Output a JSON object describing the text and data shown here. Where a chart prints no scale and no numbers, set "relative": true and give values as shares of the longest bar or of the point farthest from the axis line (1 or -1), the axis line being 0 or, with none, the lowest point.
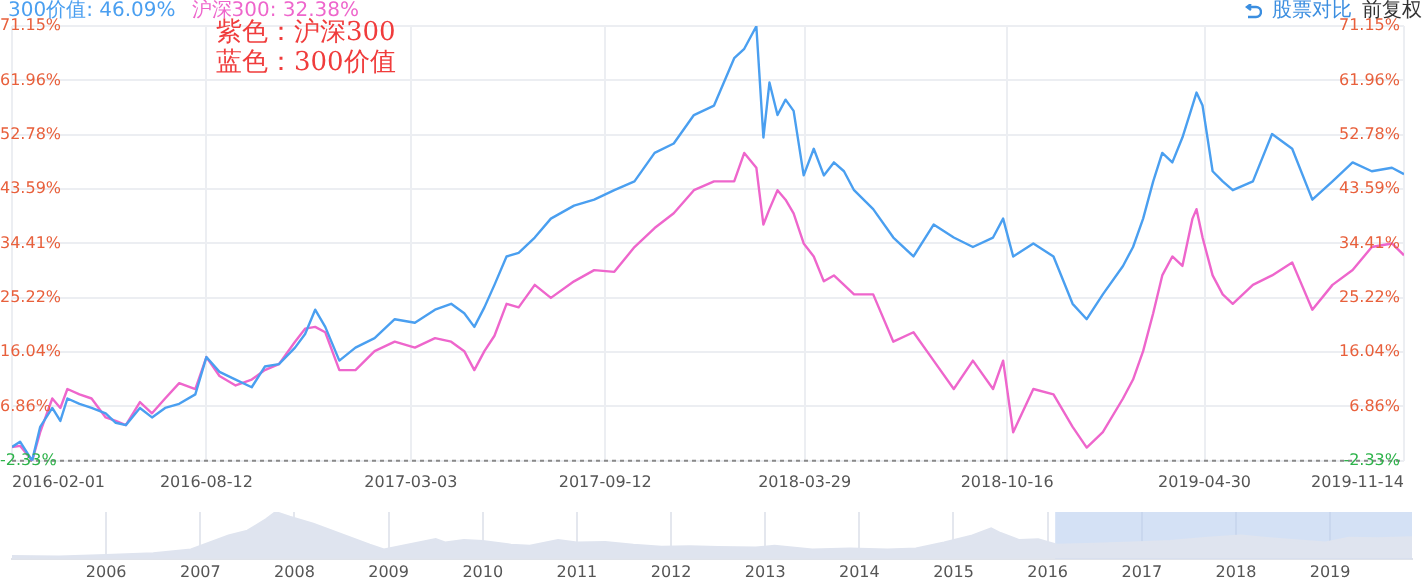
{
  "chart_data": [
    {
      "type": "line",
      "x": [
        "2016-02-01",
        "2016-02-09",
        "2016-02-21",
        "2016-02-29",
        "2016-03-12",
        "2016-03-20",
        "2016-03-27",
        "2016-04-08",
        "2016-04-20",
        "2016-05-04",
        "2016-05-14",
        "2016-05-24",
        "2016-06-07",
        "2016-06-19",
        "2016-07-02",
        "2016-07-16",
        "2016-08-01",
        "2016-08-12",
        "2016-08-25",
        "2016-09-10",
        "2016-09-26",
        "2016-10-09",
        "2016-10-23",
        "2016-11-08",
        "2016-11-18",
        "2016-11-28",
        "2016-12-08",
        "2016-12-22",
        "2017-01-07",
        "2017-01-26",
        "2017-02-15",
        "2017-03-07",
        "2017-03-27",
        "2017-04-12",
        "2017-04-25",
        "2017-05-05",
        "2017-05-15",
        "2017-05-25",
        "2017-06-06",
        "2017-06-18",
        "2017-07-04",
        "2017-07-20",
        "2017-08-12",
        "2017-09-01",
        "2017-09-21",
        "2017-10-11",
        "2017-10-31",
        "2017-11-19",
        "2017-12-09",
        "2017-12-29",
        "2018-01-18",
        "2018-01-28",
        "2018-02-09",
        "2018-02-16",
        "2018-02-22",
        "2018-03-02",
        "2018-03-10",
        "2018-03-18",
        "2018-03-28",
        "2018-04-07",
        "2018-04-17",
        "2018-04-27",
        "2018-05-07",
        "2018-05-17",
        "2018-06-05",
        "2018-06-25",
        "2018-07-15",
        "2018-08-04",
        "2018-08-24",
        "2018-09-12",
        "2018-10-02",
        "2018-10-12",
        "2018-10-22",
        "2018-11-11",
        "2018-12-01",
        "2018-12-20",
        "2019-01-03",
        "2019-01-19",
        "2019-02-08",
        "2019-02-18",
        "2019-02-28",
        "2019-03-10",
        "2019-03-19",
        "2019-03-29",
        "2019-04-08",
        "2019-04-18",
        "2019-04-22",
        "2019-04-28",
        "2019-05-08",
        "2019-05-18",
        "2019-05-28",
        "2019-06-17",
        "2019-07-06",
        "2019-07-26",
        "2019-08-15",
        "2019-09-04",
        "2019-09-24",
        "2019-10-13",
        "2019-11-02",
        "2019-11-14"
      ],
      "series": [
        {
          "name": "300价值: 46.09%",
          "color": "#4a9ff0",
          "values": [
            0,
            0.9,
            -2.3,
            3.4,
            6.6,
            4.4,
            8.2,
            7.3,
            6.6,
            5.7,
            4.1,
            3.7,
            6.6,
            5.0,
            6.6,
            7.3,
            8.9,
            15.2,
            12.7,
            11.4,
            10.1,
            13.6,
            14.0,
            16.8,
            19.1,
            23.2,
            20.3,
            14.6,
            16.8,
            18.4,
            21.6,
            21.0,
            23.2,
            24.2,
            22.6,
            20.3,
            23.6,
            27.4,
            32.2,
            32.8,
            35.4,
            38.6,
            40.8,
            41.8,
            43.4,
            44.9,
            49.7,
            51.3,
            56.1,
            57.7,
            65.7,
            67.3,
            71.1,
            52.3,
            61.6,
            56.1,
            58.7,
            56.8,
            45.9,
            50.4,
            45.9,
            48.1,
            46.6,
            43.4,
            40.2,
            35.4,
            32.2,
            37.6,
            35.4,
            33.8,
            35.4,
            38.6,
            32.2,
            34.4,
            32.2,
            24.2,
            21.6,
            25.8,
            30.6,
            33.8,
            38.6,
            44.9,
            49.7,
            48.1,
            52.3,
            57.7,
            59.9,
            57.7,
            46.6,
            44.9,
            43.4,
            44.9,
            52.9,
            50.4,
            41.8,
            44.9,
            48.1,
            46.6,
            47.2,
            46.1
          ]
        },
        {
          "name": "沪深300: 32.38%",
          "color": "#ee66cc",
          "values": [
            0,
            0.2,
            -2.3,
            2.5,
            8.2,
            6.6,
            9.8,
            8.9,
            8.2,
            5.0,
            4.4,
            3.7,
            7.6,
            5.7,
            8.2,
            10.8,
            9.8,
            15.2,
            12.0,
            10.4,
            11.4,
            13.0,
            14.0,
            17.8,
            20.0,
            20.3,
            19.4,
            13.0,
            13.0,
            16.2,
            17.8,
            16.8,
            18.4,
            17.8,
            16.2,
            13.0,
            16.2,
            18.8,
            24.2,
            23.6,
            27.4,
            25.2,
            28.0,
            29.9,
            29.6,
            33.8,
            37.0,
            39.5,
            43.4,
            44.9,
            44.9,
            49.7,
            47.2,
            37.6,
            40.2,
            43.4,
            41.8,
            39.5,
            34.4,
            32.2,
            28.0,
            29.0,
            27.4,
            25.8,
            25.8,
            17.8,
            19.4,
            14.6,
            9.8,
            14.6,
            9.8,
            14.6,
            2.5,
            9.8,
            8.9,
            3.4,
            -0.1,
            2.5,
            8.2,
            11.4,
            16.2,
            22.6,
            29.0,
            32.2,
            30.6,
            38.6,
            40.2,
            35.4,
            29.0,
            25.8,
            24.2,
            27.4,
            29.0,
            31.2,
            23.2,
            27.4,
            29.9,
            33.8,
            34.4,
            32.4
          ]
        }
      ],
      "xlim": [
        "2016-02-01",
        "2019-11-14"
      ],
      "xticks": [
        "2016-02-01",
        "2016-08-12",
        "2017-03-03",
        "2017-09-12",
        "2018-03-29",
        "2018-10-16",
        "2019-04-30",
        "2019-11-14"
      ],
      "ylim": [
        -2.33,
        71.15
      ],
      "yticks": [
        {
          "value": -2.33,
          "label": "-2.33%"
        },
        {
          "value": 6.86,
          "label": "6.86%"
        },
        {
          "value": 16.04,
          "label": "16.04%"
        },
        {
          "value": 25.22,
          "label": "25.22%"
        },
        {
          "value": 34.41,
          "label": "34.41%"
        },
        {
          "value": 43.59,
          "label": "43.59%"
        },
        {
          "value": 52.78,
          "label": "52.78%"
        },
        {
          "value": 61.96,
          "label": "61.96%"
        },
        {
          "value": 71.15,
          "label": "71.15%"
        }
      ],
      "y2lim": [
        -2.33,
        71.15
      ],
      "y2ticks": [
        {
          "value": -2.33,
          "label": "-2.33%"
        },
        {
          "value": 6.86,
          "label": "6.86%"
        },
        {
          "value": 16.04,
          "label": "16.04%"
        },
        {
          "value": 25.22,
          "label": "25.22%"
        },
        {
          "value": 34.41,
          "label": "34.41%"
        },
        {
          "value": 43.59,
          "label": "43.59%"
        },
        {
          "value": 52.78,
          "label": "52.78%"
        },
        {
          "value": 61.96,
          "label": "61.96%"
        },
        {
          "value": 71.15,
          "label": "71.15%"
        }
      ],
      "ref_lines": [
        {
          "axis": "y",
          "value": -2.33,
          "line_style": "dotted",
          "color": "#888888"
        }
      ],
      "grid": true,
      "annotations": [
        "紫色：沪深300",
        "蓝色：300价值",
        "股票对比",
        "前复权"
      ]
    },
    {
      "type": "area",
      "relative": true,
      "color": "#dfe4ef",
      "x": [
        2005.0,
        2005.5,
        2006.0,
        2006.5,
        2006.9,
        2007.1,
        2007.3,
        2007.5,
        2007.7,
        2007.8,
        2007.95,
        2008.2,
        2008.4,
        2008.6,
        2008.8,
        2008.95,
        2009.2,
        2009.5,
        2009.6,
        2009.8,
        2010.0,
        2010.3,
        2010.5,
        2010.8,
        2011.0,
        2011.3,
        2011.6,
        2011.9,
        2012.2,
        2012.5,
        2012.9,
        2013.1,
        2013.5,
        2013.9,
        2014.3,
        2014.6,
        2014.9,
        2015.2,
        2015.4,
        2015.5,
        2015.7,
        2015.9,
        2016.1,
        2016.5,
        2016.9,
        2017.3,
        2017.7,
        2018.05,
        2018.3,
        2018.6,
        2018.95,
        2019.2,
        2019.5,
        2019.87
      ],
      "values": [
        0.06,
        0.05,
        0.08,
        0.12,
        0.2,
        0.35,
        0.5,
        0.6,
        0.85,
        1.0,
        0.9,
        0.75,
        0.6,
        0.45,
        0.3,
        0.2,
        0.3,
        0.42,
        0.35,
        0.4,
        0.38,
        0.3,
        0.28,
        0.4,
        0.35,
        0.36,
        0.3,
        0.26,
        0.27,
        0.25,
        0.24,
        0.28,
        0.2,
        0.22,
        0.2,
        0.22,
        0.35,
        0.5,
        0.65,
        0.55,
        0.4,
        0.42,
        0.3,
        0.32,
        0.35,
        0.38,
        0.45,
        0.5,
        0.45,
        0.4,
        0.35,
        0.45,
        0.44,
        0.46
      ],
      "xlim": [
        2005.0,
        2019.87
      ],
      "xticks": [
        2006,
        2007,
        2008,
        2009,
        2010,
        2011,
        2012,
        2013,
        2014,
        2015,
        2016,
        2017,
        2018,
        2019
      ],
      "grid": "x",
      "bands": [
        {
          "axis": "x",
          "from": 2016.08,
          "to": 2019.87,
          "color": "#b7cdee"
        }
      ]
    }
  ]
}
